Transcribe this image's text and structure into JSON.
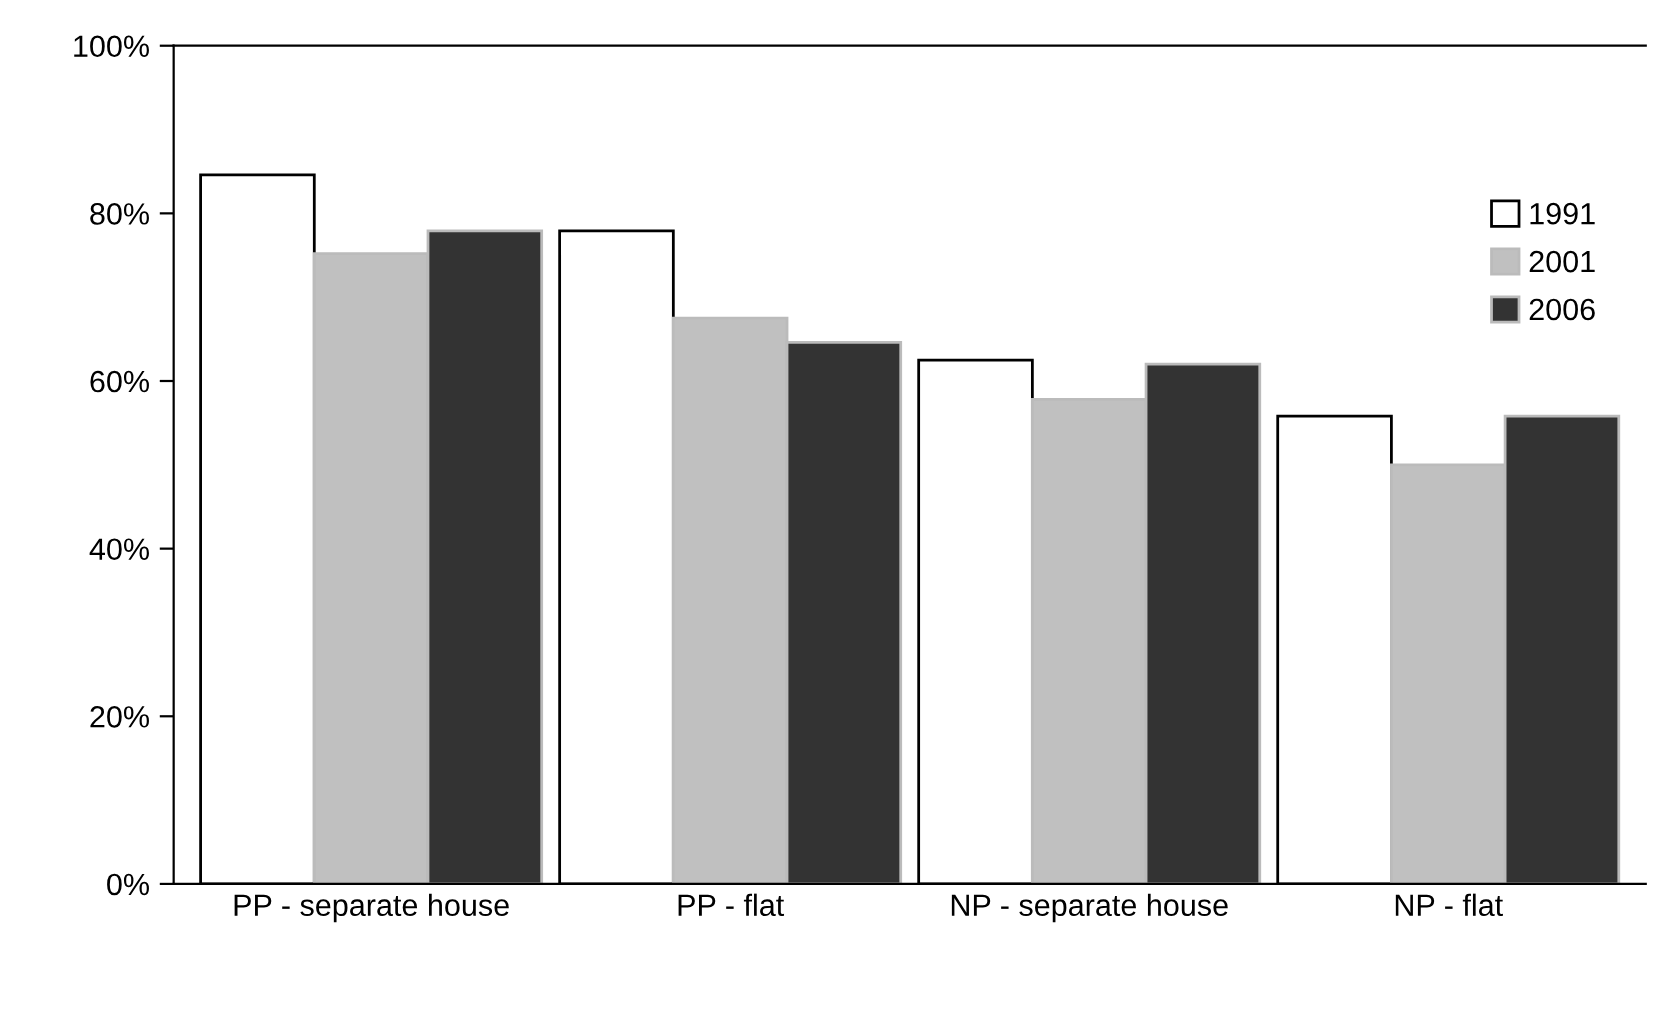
{
  "chart_data": {
    "type": "bar",
    "categories": [
      "PP - separate house",
      "PP - flat",
      "NP - separate house",
      "NP - flat"
    ],
    "series": [
      {
        "name": "1991",
        "color": "#ffffff",
        "values": [
          84.6,
          77.9,
          62.5,
          55.8
        ]
      },
      {
        "name": "2001",
        "color": "#c0c0c0",
        "values": [
          75.2,
          67.5,
          57.8,
          50.0
        ]
      },
      {
        "name": "2006",
        "color": "#333333",
        "values": [
          77.9,
          64.6,
          62.0,
          55.8
        ]
      }
    ],
    "ylim": [
      0,
      100
    ],
    "yticks": [
      {
        "value": 0,
        "label": "0%"
      },
      {
        "value": 20,
        "label": "20%"
      },
      {
        "value": 40,
        "label": "40%"
      },
      {
        "value": 60,
        "label": "60%"
      },
      {
        "value": 80,
        "label": "80%"
      },
      {
        "value": 100,
        "label": "100%"
      }
    ],
    "grid": false,
    "legend": "right"
  }
}
